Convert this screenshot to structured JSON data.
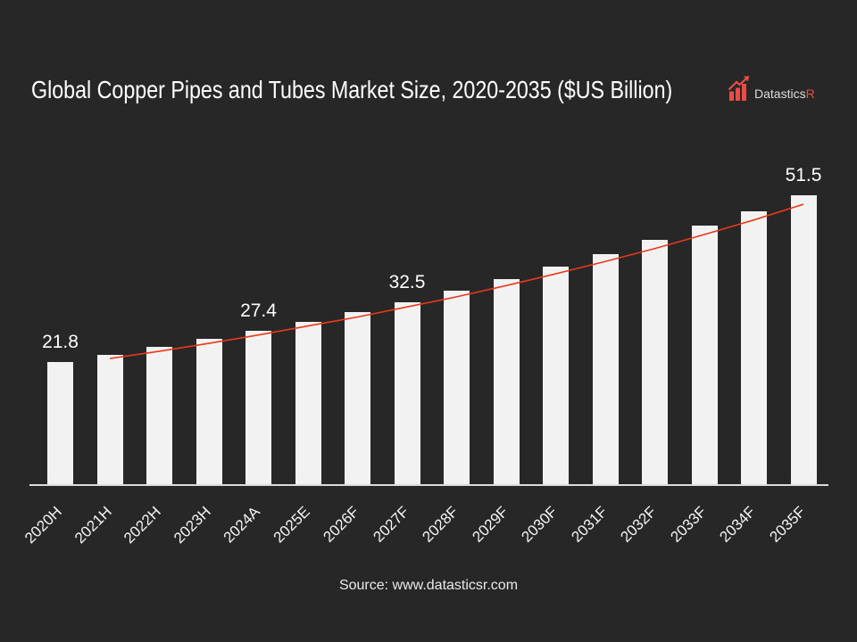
{
  "slide": {
    "background_color": "#272727",
    "source": "Source: www.datasticsr.com",
    "logo": {
      "name": "Datastics",
      "suffix": "R",
      "accent_color": "#ee4b44",
      "icon": "growth-bars-arrow-icon"
    }
  },
  "chart_data": {
    "type": "bar",
    "title": "Global Copper Pipes and Tubes Market Size, 2020-2035 ($US Billion)",
    "categories": [
      "2020H",
      "2021H",
      "2022H",
      "2023H",
      "2024A",
      "2025E",
      "2026F",
      "2027F",
      "2028F",
      "2029F",
      "2030F",
      "2031F",
      "2032F",
      "2033F",
      "2034F",
      "2035F"
    ],
    "values": [
      21.8,
      23.0,
      24.4,
      25.9,
      27.4,
      29.0,
      30.7,
      32.5,
      34.5,
      36.6,
      38.8,
      41.0,
      43.5,
      46.1,
      48.7,
      51.5
    ],
    "data_labels": [
      {
        "category": "2020H",
        "label": "21.8"
      },
      {
        "category": "2024A",
        "label": "27.4"
      },
      {
        "category": "2027F",
        "label": "32.5"
      },
      {
        "category": "2035F",
        "label": "51.5"
      }
    ],
    "bar_color": "#f2f2f2",
    "axis_color": "#dcdcdc",
    "label_color": "#ffffff",
    "ylim": [
      0,
      51.5
    ],
    "grid": false,
    "legend": false,
    "trend_line": {
      "color": "#e8391c",
      "start_category": "2021H",
      "values": [
        22.4,
        23.7,
        25.1,
        26.6,
        28.2,
        29.8,
        31.6,
        33.4,
        35.4,
        37.5,
        39.7,
        42.0,
        44.5,
        47.1,
        49.9
      ]
    }
  }
}
